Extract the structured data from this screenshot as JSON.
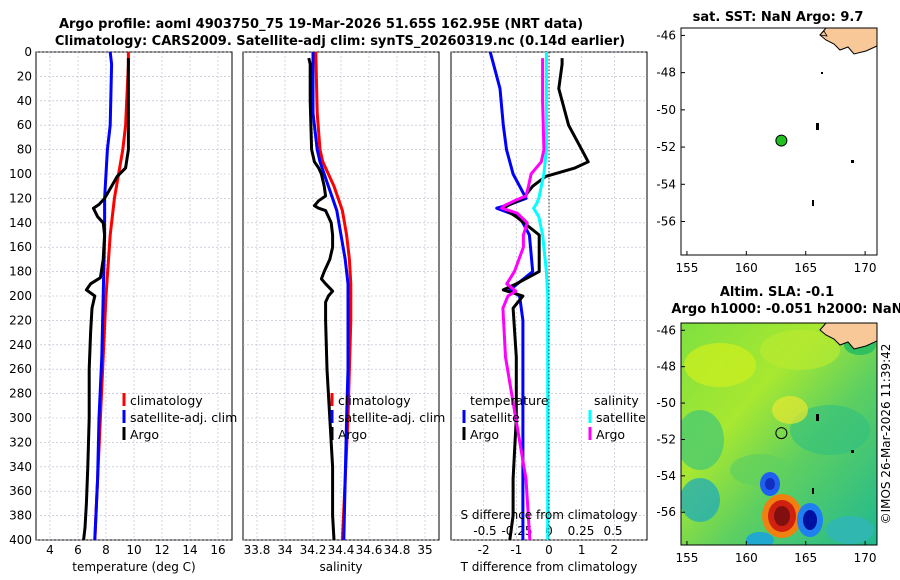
{
  "titles": {
    "line1": "Argo profile: aoml 4903750_75 19-Mar-2026 51.65S 162.95E (NRT data)",
    "line2": "Climatology: CARS2009. Satellite-adj clim: synTS_20260319.nc (0.14d earlier)",
    "sst": "sat. SST: NaN Argo: 9.7",
    "sla1": "Altim. SLA: -0.1",
    "sla2": "Argo h1000: -0.051 h2000: NaN",
    "stamp": "©IMOS 26-Mar-2026 11:39:42"
  },
  "depth_ticks": [
    "0",
    "20",
    "40",
    "60",
    "80",
    "100",
    "120",
    "140",
    "160",
    "180",
    "200",
    "220",
    "240",
    "260",
    "280",
    "300",
    "320",
    "340",
    "360",
    "380",
    "400"
  ],
  "colors": {
    "climatology": "#ff0000",
    "satellite": "#0000ff",
    "argo": "#000000",
    "sat_salinity": "#00ffff",
    "argo_salinity": "#ff00ff"
  },
  "chart_data": [
    {
      "type": "line",
      "name": "temperature",
      "xlabel": "temperature (deg C)",
      "xlim": [
        3,
        17
      ],
      "ylim": [
        0,
        400
      ],
      "xticks": [
        4,
        6,
        8,
        10,
        12,
        14,
        16
      ],
      "xtick_labels": [
        "4",
        "6",
        "8",
        "10",
        "12",
        "14",
        "16"
      ],
      "legend": [
        "climatology",
        "satellite-adj. clim",
        "Argo"
      ],
      "series": [
        {
          "name": "climatology",
          "color": "#ff0000",
          "depth": [
            0,
            10,
            60,
            80,
            100,
            120,
            150,
            200,
            250,
            300,
            350,
            400
          ],
          "values": [
            9.6,
            9.6,
            9.4,
            9.2,
            8.9,
            8.6,
            8.3,
            8.0,
            7.8,
            7.6,
            7.4,
            7.2
          ]
        },
        {
          "name": "satellite-adj. clim",
          "color": "#0000ff",
          "depth": [
            0,
            10,
            60,
            80,
            100,
            120,
            150,
            200,
            250,
            300,
            350,
            400
          ],
          "values": [
            8.3,
            8.4,
            8.3,
            8.1,
            8.0,
            7.9,
            7.9,
            7.8,
            7.7,
            7.5,
            7.4,
            7.2
          ]
        },
        {
          "name": "Argo",
          "color": "#000000",
          "depth": [
            5,
            10,
            40,
            80,
            95,
            102,
            110,
            120,
            125,
            128,
            135,
            140,
            150,
            170,
            185,
            190,
            195,
            200,
            210,
            230,
            260,
            300,
            340,
            370,
            390,
            400
          ],
          "values": [
            9.6,
            9.6,
            9.6,
            9.6,
            9.4,
            8.8,
            8.4,
            7.9,
            7.5,
            7.1,
            7.4,
            7.8,
            7.9,
            7.8,
            7.6,
            6.9,
            6.6,
            7.2,
            7.0,
            6.9,
            6.8,
            6.8,
            6.7,
            6.6,
            6.5,
            6.4
          ]
        }
      ]
    },
    {
      "type": "line",
      "name": "salinity",
      "xlabel": "salinity",
      "xlim": [
        33.7,
        35.1
      ],
      "ylim": [
        0,
        400
      ],
      "xticks": [
        33.8,
        34,
        34.2,
        34.4,
        34.6,
        34.8,
        35
      ],
      "xtick_labels": [
        "33.8",
        "34",
        "34.2",
        "34.4",
        "34.6",
        "34.8",
        "35"
      ],
      "legend": [
        "climatology",
        "satellite-adj. clim",
        "Argo"
      ],
      "series": [
        {
          "name": "climatology",
          "color": "#ff0000",
          "depth": [
            0,
            50,
            80,
            90,
            100,
            110,
            120,
            130,
            150,
            170,
            190,
            220,
            260,
            300,
            350,
            400
          ],
          "values": [
            34.22,
            34.23,
            34.25,
            34.27,
            34.31,
            34.35,
            34.38,
            34.41,
            34.44,
            34.46,
            34.47,
            34.47,
            34.46,
            34.45,
            34.43,
            34.41
          ]
        },
        {
          "name": "satellite-adj. clim",
          "color": "#0000ff",
          "depth": [
            0,
            50,
            80,
            90,
            100,
            110,
            120,
            130,
            150,
            170,
            190,
            220,
            260,
            300,
            350,
            400
          ],
          "values": [
            34.2,
            34.2,
            34.23,
            34.25,
            34.28,
            34.31,
            34.34,
            34.37,
            34.4,
            34.43,
            34.45,
            34.45,
            34.45,
            34.44,
            34.43,
            34.42
          ]
        },
        {
          "name": "Argo",
          "color": "#000000",
          "depth": [
            5,
            10,
            40,
            80,
            90,
            95,
            100,
            110,
            118,
            122,
            126,
            128,
            130,
            140,
            150,
            160,
            170,
            180,
            186,
            190,
            196,
            200,
            205,
            220,
            260,
            300,
            340,
            380,
            400
          ],
          "values": [
            34.17,
            34.18,
            34.18,
            34.19,
            34.21,
            34.24,
            34.26,
            34.28,
            34.29,
            34.24,
            34.21,
            34.24,
            34.29,
            34.33,
            34.34,
            34.34,
            34.32,
            34.28,
            34.26,
            34.29,
            34.34,
            34.31,
            34.29,
            34.29,
            34.3,
            34.32,
            34.34,
            34.34,
            34.35
          ]
        }
      ]
    },
    {
      "type": "line",
      "name": "differences",
      "xlabel": "T difference from climatology",
      "xlabel_top": "S difference from climatology",
      "xlim": [
        -3,
        3
      ],
      "ylim": [
        0,
        400
      ],
      "xticks": [
        -2,
        -1,
        0,
        1,
        2
      ],
      "xtick_labels": [
        "-2",
        "-1",
        "0",
        "1",
        "2"
      ],
      "sticks": [
        -0.5,
        -0.25,
        0,
        0.25,
        0.5
      ],
      "stick_labels": [
        "-0.5",
        "-0.25",
        "0",
        "0.25",
        "0.5"
      ],
      "legend_t_title": "temperature",
      "legend_s_title": "salinity",
      "legend_t": [
        "satellite",
        "Argo"
      ],
      "legend_s": [
        "satellite",
        "Argo"
      ],
      "series": [
        {
          "name": "T satellite",
          "color": "#0000ff",
          "depth": [
            0,
            10,
            30,
            60,
            80,
            100,
            110,
            120,
            125,
            128,
            135,
            150,
            180,
            195,
            200,
            220,
            250,
            300,
            350,
            400
          ],
          "values": [
            -1.8,
            -1.7,
            -1.5,
            -1.4,
            -1.3,
            -1.1,
            -0.9,
            -0.7,
            -1.2,
            -1.6,
            -0.9,
            -0.6,
            -0.5,
            -1.2,
            -0.9,
            -0.8,
            -0.8,
            -0.8,
            -0.8,
            -0.8
          ]
        },
        {
          "name": "T Argo",
          "color": "#000000",
          "depth": [
            5,
            10,
            30,
            60,
            80,
            90,
            95,
            102,
            110,
            120,
            125,
            128,
            135,
            150,
            180,
            190,
            195,
            200,
            210,
            250,
            300,
            350,
            380,
            400
          ],
          "values": [
            0.4,
            0.4,
            0.3,
            0.6,
            1.0,
            1.2,
            0.8,
            -0.1,
            -0.5,
            -0.8,
            -1.2,
            -1.4,
            -1.0,
            -0.3,
            -0.3,
            -1.0,
            -1.4,
            -0.8,
            -1.1,
            -1.0,
            -1.0,
            -1.1,
            -1.1,
            -1.2
          ]
        },
        {
          "name": "S satellite",
          "color": "#00ffff",
          "depth": [
            0,
            30,
            80,
            100,
            110,
            120,
            125,
            128,
            135,
            150,
            180,
            200,
            250,
            300,
            350,
            400
          ],
          "values": [
            -0.02,
            -0.02,
            -0.02,
            -0.04,
            -0.06,
            -0.08,
            -0.1,
            -0.12,
            -0.08,
            -0.05,
            -0.02,
            -0.01,
            -0.01,
            -0.01,
            -0.01,
            -0.01
          ]
        },
        {
          "name": "S Argo",
          "color": "#ff00ff",
          "depth": [
            5,
            40,
            80,
            90,
            100,
            110,
            118,
            122,
            126,
            128,
            132,
            140,
            150,
            160,
            180,
            190,
            196,
            200,
            210,
            250,
            300,
            350,
            400
          ],
          "values": [
            -0.05,
            -0.05,
            -0.04,
            -0.06,
            -0.14,
            -0.16,
            -0.18,
            -0.27,
            -0.35,
            -0.37,
            -0.25,
            -0.17,
            -0.2,
            -0.2,
            -0.27,
            -0.33,
            -0.26,
            -0.32,
            -0.36,
            -0.34,
            -0.26,
            -0.18,
            -0.15
          ]
        }
      ]
    },
    {
      "type": "scatter",
      "name": "sst-map",
      "xlim": [
        154.5,
        171
      ],
      "ylim": [
        -57.8,
        -45.6
      ],
      "xticks": [
        155,
        160,
        165,
        170
      ],
      "xtick_labels": [
        "155",
        "160",
        "165",
        "170"
      ],
      "yticks": [
        -46,
        -48,
        -50,
        -52,
        -54,
        -56
      ],
      "ytick_labels": [
        "-46",
        "-48",
        "-50",
        "-52",
        "-54",
        "-56"
      ],
      "profile": {
        "lon": 162.95,
        "lat": -51.65
      }
    },
    {
      "type": "heatmap",
      "name": "sla-map",
      "xlim": [
        154.5,
        171
      ],
      "ylim": [
        -57.8,
        -45.6
      ],
      "xticks": [
        155,
        160,
        165,
        170
      ],
      "xtick_labels": [
        "155",
        "160",
        "165",
        "170"
      ],
      "yticks": [
        -46,
        -48,
        -50,
        -52,
        -54,
        -56
      ],
      "ytick_labels": [
        "-46",
        "-48",
        "-50",
        "-52",
        "-54",
        "-56"
      ],
      "profile": {
        "lon": 162.95,
        "lat": -51.65
      }
    }
  ]
}
